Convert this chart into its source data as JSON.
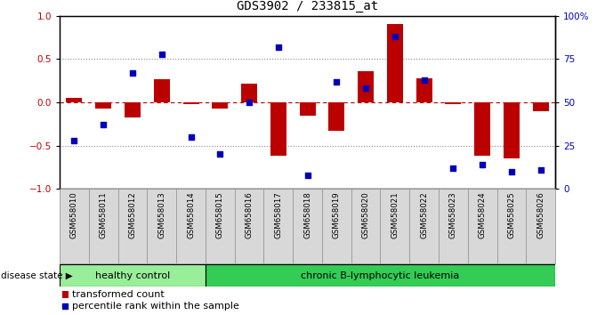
{
  "title": "GDS3902 / 233815_at",
  "samples": [
    "GSM658010",
    "GSM658011",
    "GSM658012",
    "GSM658013",
    "GSM658014",
    "GSM658015",
    "GSM658016",
    "GSM658017",
    "GSM658018",
    "GSM658019",
    "GSM658020",
    "GSM658021",
    "GSM658022",
    "GSM658023",
    "GSM658024",
    "GSM658025",
    "GSM658026"
  ],
  "transformed_count": [
    0.05,
    -0.07,
    -0.17,
    0.27,
    -0.02,
    -0.07,
    0.22,
    -0.62,
    -0.15,
    -0.33,
    0.36,
    0.9,
    0.28,
    -0.02,
    -0.62,
    -0.65,
    -0.1
  ],
  "percentile_rank": [
    28,
    37,
    67,
    78,
    30,
    20,
    50,
    82,
    8,
    62,
    58,
    88,
    63,
    12,
    14,
    10,
    11
  ],
  "bar_color": "#BB0000",
  "dot_color": "#0000BB",
  "healthy_count": 5,
  "healthy_label": "healthy control",
  "disease_label": "chronic B-lymphocytic leukemia",
  "disease_state_label": "disease state",
  "healthy_color": "#99EE99",
  "disease_color": "#33CC55",
  "legend_bar_label": "transformed count",
  "legend_dot_label": "percentile rank within the sample",
  "ylim_left": [
    -1,
    1
  ],
  "ylim_right": [
    0,
    100
  ],
  "yticks_left": [
    -1,
    -0.5,
    0,
    0.5,
    1
  ],
  "yticks_right": [
    0,
    25,
    50,
    75,
    100
  ],
  "dotted_hlines": [
    0.5,
    -0.5
  ],
  "dashed_hline": 0.0,
  "bg_color": "#FFFFFF"
}
